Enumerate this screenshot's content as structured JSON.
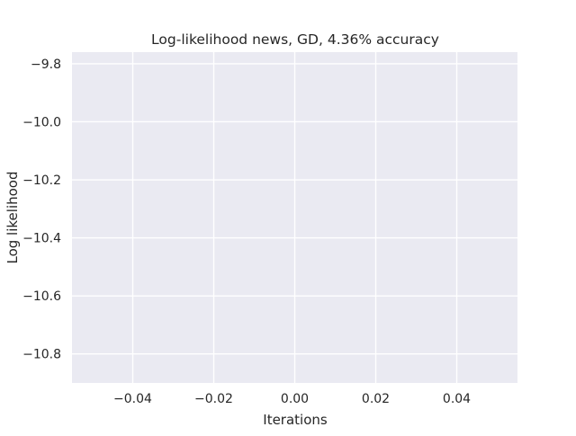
{
  "chart_data": {
    "type": "line",
    "title": "Log-likelihood news, GD, 4.36% accuracy",
    "xlabel": "Iterations",
    "ylabel": "Log likelihood",
    "xlim": [
      -0.055,
      0.055
    ],
    "ylim": [
      -10.9,
      -9.76
    ],
    "xticks": [
      -0.04,
      -0.02,
      0.0,
      0.02,
      0.04
    ],
    "xtick_labels": [
      "−0.04",
      "−0.02",
      "0.00",
      "0.02",
      "0.04"
    ],
    "yticks": [
      -9.8,
      -10.0,
      -10.2,
      -10.4,
      -10.6,
      -10.8
    ],
    "ytick_labels": [
      "−9.8",
      "−10.0",
      "−10.2",
      "−10.4",
      "−10.6",
      "−10.8"
    ],
    "grid": true,
    "series": [],
    "colors": {
      "plot_background": "#eaeaf2",
      "grid": "#ffffff",
      "text": "#262626"
    }
  }
}
